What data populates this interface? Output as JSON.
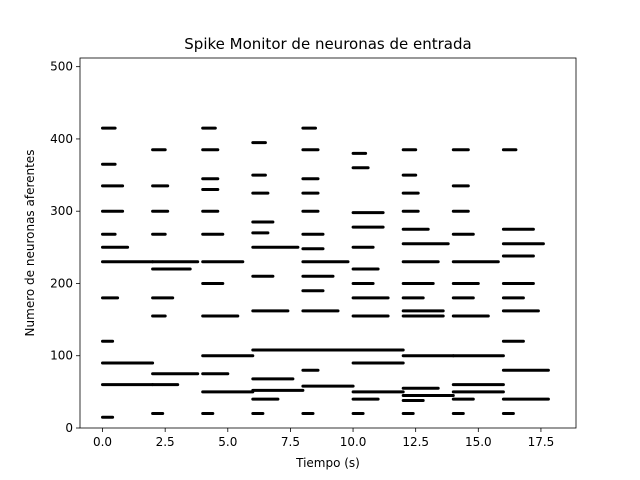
{
  "chart_data": {
    "type": "scatter",
    "title": "Spike Monitor de neuronas de entrada",
    "xlabel": "Tiempo (s)",
    "ylabel": "Numero de neuronas aferentes",
    "xlim": [
      -0.9,
      18.9
    ],
    "ylim": [
      0,
      512
    ],
    "xticks": [
      0.0,
      2.5,
      5.0,
      7.5,
      10.0,
      12.5,
      15.0,
      17.5
    ],
    "xtick_labels": [
      "0.0",
      "2.5",
      "5.0",
      "7.5",
      "10.0",
      "12.5",
      "15.0",
      "17.5"
    ],
    "yticks": [
      0,
      100,
      200,
      300,
      400,
      500
    ],
    "ytick_labels": [
      "0",
      "100",
      "200",
      "300",
      "400",
      "500"
    ],
    "grid": false,
    "color": "#000000",
    "segments": [
      {
        "x": [
          0.0,
          2.0
        ],
        "y": 230
      },
      {
        "x": [
          0.0,
          2.0
        ],
        "y": 90
      },
      {
        "x": [
          0.0,
          2.0
        ],
        "y": 60
      },
      {
        "x": [
          0.0,
          1.0
        ],
        "y": 250
      },
      {
        "x": [
          0.0,
          0.8
        ],
        "y": 335
      },
      {
        "x": [
          0.0,
          0.8
        ],
        "y": 300
      },
      {
        "x": [
          0.0,
          0.6
        ],
        "y": 180
      },
      {
        "x": [
          0.0,
          0.5
        ],
        "y": 415
      },
      {
        "x": [
          0.0,
          0.5
        ],
        "y": 365
      },
      {
        "x": [
          0.0,
          0.5
        ],
        "y": 268
      },
      {
        "x": [
          0.0,
          0.4
        ],
        "y": 120
      },
      {
        "x": [
          0.0,
          0.4
        ],
        "y": 15
      },
      {
        "x": [
          2.0,
          3.8
        ],
        "y": 230
      },
      {
        "x": [
          2.0,
          3.8
        ],
        "y": 75
      },
      {
        "x": [
          2.0,
          3.5
        ],
        "y": 220
      },
      {
        "x": [
          2.0,
          3.0
        ],
        "y": 60
      },
      {
        "x": [
          2.0,
          2.8
        ],
        "y": 180
      },
      {
        "x": [
          2.0,
          2.6
        ],
        "y": 335
      },
      {
        "x": [
          2.0,
          2.6
        ],
        "y": 300
      },
      {
        "x": [
          2.0,
          2.5
        ],
        "y": 385
      },
      {
        "x": [
          2.0,
          2.5
        ],
        "y": 268
      },
      {
        "x": [
          2.0,
          2.5
        ],
        "y": 155
      },
      {
        "x": [
          2.0,
          2.4
        ],
        "y": 20
      },
      {
        "x": [
          4.0,
          6.0
        ],
        "y": 100
      },
      {
        "x": [
          4.0,
          6.0
        ],
        "y": 50
      },
      {
        "x": [
          4.0,
          5.6
        ],
        "y": 230
      },
      {
        "x": [
          4.0,
          5.4
        ],
        "y": 155
      },
      {
        "x": [
          4.0,
          5.0
        ],
        "y": 75
      },
      {
        "x": [
          4.0,
          4.8
        ],
        "y": 200
      },
      {
        "x": [
          4.0,
          4.8
        ],
        "y": 268
      },
      {
        "x": [
          4.0,
          4.6
        ],
        "y": 385
      },
      {
        "x": [
          4.0,
          4.6
        ],
        "y": 345
      },
      {
        "x": [
          4.0,
          4.6
        ],
        "y": 330
      },
      {
        "x": [
          4.0,
          4.6
        ],
        "y": 300
      },
      {
        "x": [
          4.0,
          4.5
        ],
        "y": 415
      },
      {
        "x": [
          4.0,
          4.4
        ],
        "y": 20
      },
      {
        "x": [
          6.0,
          8.0
        ],
        "y": 108
      },
      {
        "x": [
          6.0,
          8.0
        ],
        "y": 52
      },
      {
        "x": [
          6.0,
          7.8
        ],
        "y": 250
      },
      {
        "x": [
          6.0,
          7.6
        ],
        "y": 68
      },
      {
        "x": [
          6.0,
          7.4
        ],
        "y": 162
      },
      {
        "x": [
          6.0,
          7.0
        ],
        "y": 40
      },
      {
        "x": [
          6.0,
          6.8
        ],
        "y": 285
      },
      {
        "x": [
          6.0,
          6.8
        ],
        "y": 210
      },
      {
        "x": [
          6.0,
          6.6
        ],
        "y": 325
      },
      {
        "x": [
          6.0,
          6.6
        ],
        "y": 270
      },
      {
        "x": [
          6.0,
          6.5
        ],
        "y": 395
      },
      {
        "x": [
          6.0,
          6.5
        ],
        "y": 350
      },
      {
        "x": [
          6.0,
          6.4
        ],
        "y": 20
      },
      {
        "x": [
          8.0,
          10.0
        ],
        "y": 108
      },
      {
        "x": [
          8.0,
          10.0
        ],
        "y": 58
      },
      {
        "x": [
          8.0,
          9.8
        ],
        "y": 230
      },
      {
        "x": [
          8.0,
          9.4
        ],
        "y": 162
      },
      {
        "x": [
          8.0,
          9.2
        ],
        "y": 210
      },
      {
        "x": [
          8.0,
          8.8
        ],
        "y": 268
      },
      {
        "x": [
          8.0,
          8.8
        ],
        "y": 248
      },
      {
        "x": [
          8.0,
          8.8
        ],
        "y": 190
      },
      {
        "x": [
          8.0,
          8.6
        ],
        "y": 385
      },
      {
        "x": [
          8.0,
          8.6
        ],
        "y": 345
      },
      {
        "x": [
          8.0,
          8.6
        ],
        "y": 325
      },
      {
        "x": [
          8.0,
          8.6
        ],
        "y": 300
      },
      {
        "x": [
          8.0,
          8.6
        ],
        "y": 80
      },
      {
        "x": [
          8.0,
          8.5
        ],
        "y": 415
      },
      {
        "x": [
          8.0,
          8.4
        ],
        "y": 20
      },
      {
        "x": [
          10.0,
          12.0
        ],
        "y": 108
      },
      {
        "x": [
          10.0,
          12.0
        ],
        "y": 90
      },
      {
        "x": [
          10.0,
          12.0
        ],
        "y": 50
      },
      {
        "x": [
          10.0,
          11.4
        ],
        "y": 180
      },
      {
        "x": [
          10.0,
          11.4
        ],
        "y": 155
      },
      {
        "x": [
          10.0,
          11.2
        ],
        "y": 298
      },
      {
        "x": [
          10.0,
          11.2
        ],
        "y": 278
      },
      {
        "x": [
          10.0,
          11.0
        ],
        "y": 220
      },
      {
        "x": [
          10.0,
          11.0
        ],
        "y": 40
      },
      {
        "x": [
          10.0,
          10.8
        ],
        "y": 250
      },
      {
        "x": [
          10.0,
          10.8
        ],
        "y": 200
      },
      {
        "x": [
          10.0,
          10.6
        ],
        "y": 360
      },
      {
        "x": [
          10.0,
          10.5
        ],
        "y": 380
      },
      {
        "x": [
          10.0,
          10.4
        ],
        "y": 20
      },
      {
        "x": [
          12.0,
          14.0
        ],
        "y": 100
      },
      {
        "x": [
          12.0,
          14.0
        ],
        "y": 45
      },
      {
        "x": [
          12.0,
          13.8
        ],
        "y": 255
      },
      {
        "x": [
          12.0,
          13.6
        ],
        "y": 162
      },
      {
        "x": [
          12.0,
          13.6
        ],
        "y": 155
      },
      {
        "x": [
          12.0,
          13.4
        ],
        "y": 230
      },
      {
        "x": [
          12.0,
          13.4
        ],
        "y": 55
      },
      {
        "x": [
          12.0,
          13.2
        ],
        "y": 200
      },
      {
        "x": [
          12.0,
          13.0
        ],
        "y": 275
      },
      {
        "x": [
          12.0,
          12.8
        ],
        "y": 180
      },
      {
        "x": [
          12.0,
          12.8
        ],
        "y": 38
      },
      {
        "x": [
          12.0,
          12.6
        ],
        "y": 325
      },
      {
        "x": [
          12.0,
          12.6
        ],
        "y": 300
      },
      {
        "x": [
          12.0,
          12.5
        ],
        "y": 385
      },
      {
        "x": [
          12.0,
          12.5
        ],
        "y": 350
      },
      {
        "x": [
          12.0,
          12.4
        ],
        "y": 20
      },
      {
        "x": [
          14.0,
          16.0
        ],
        "y": 100
      },
      {
        "x": [
          14.0,
          16.0
        ],
        "y": 60
      },
      {
        "x": [
          14.0,
          16.0
        ],
        "y": 50
      },
      {
        "x": [
          14.0,
          15.8
        ],
        "y": 230
      },
      {
        "x": [
          14.0,
          15.4
        ],
        "y": 155
      },
      {
        "x": [
          14.0,
          15.0
        ],
        "y": 200
      },
      {
        "x": [
          14.0,
          14.8
        ],
        "y": 268
      },
      {
        "x": [
          14.0,
          14.8
        ],
        "y": 180
      },
      {
        "x": [
          14.0,
          14.8
        ],
        "y": 40
      },
      {
        "x": [
          14.0,
          14.6
        ],
        "y": 385
      },
      {
        "x": [
          14.0,
          14.6
        ],
        "y": 335
      },
      {
        "x": [
          14.0,
          14.6
        ],
        "y": 300
      },
      {
        "x": [
          14.0,
          14.4
        ],
        "y": 20
      },
      {
        "x": [
          16.0,
          17.6
        ],
        "y": 255
      },
      {
        "x": [
          16.0,
          17.8
        ],
        "y": 80
      },
      {
        "x": [
          16.0,
          17.8
        ],
        "y": 40
      },
      {
        "x": [
          16.0,
          17.4
        ],
        "y": 162
      },
      {
        "x": [
          16.0,
          17.2
        ],
        "y": 275
      },
      {
        "x": [
          16.0,
          17.2
        ],
        "y": 238
      },
      {
        "x": [
          16.0,
          17.2
        ],
        "y": 200
      },
      {
        "x": [
          16.0,
          16.8
        ],
        "y": 180
      },
      {
        "x": [
          16.0,
          16.8
        ],
        "y": 120
      },
      {
        "x": [
          16.0,
          16.5
        ],
        "y": 385
      },
      {
        "x": [
          16.0,
          16.4
        ],
        "y": 20
      }
    ]
  }
}
